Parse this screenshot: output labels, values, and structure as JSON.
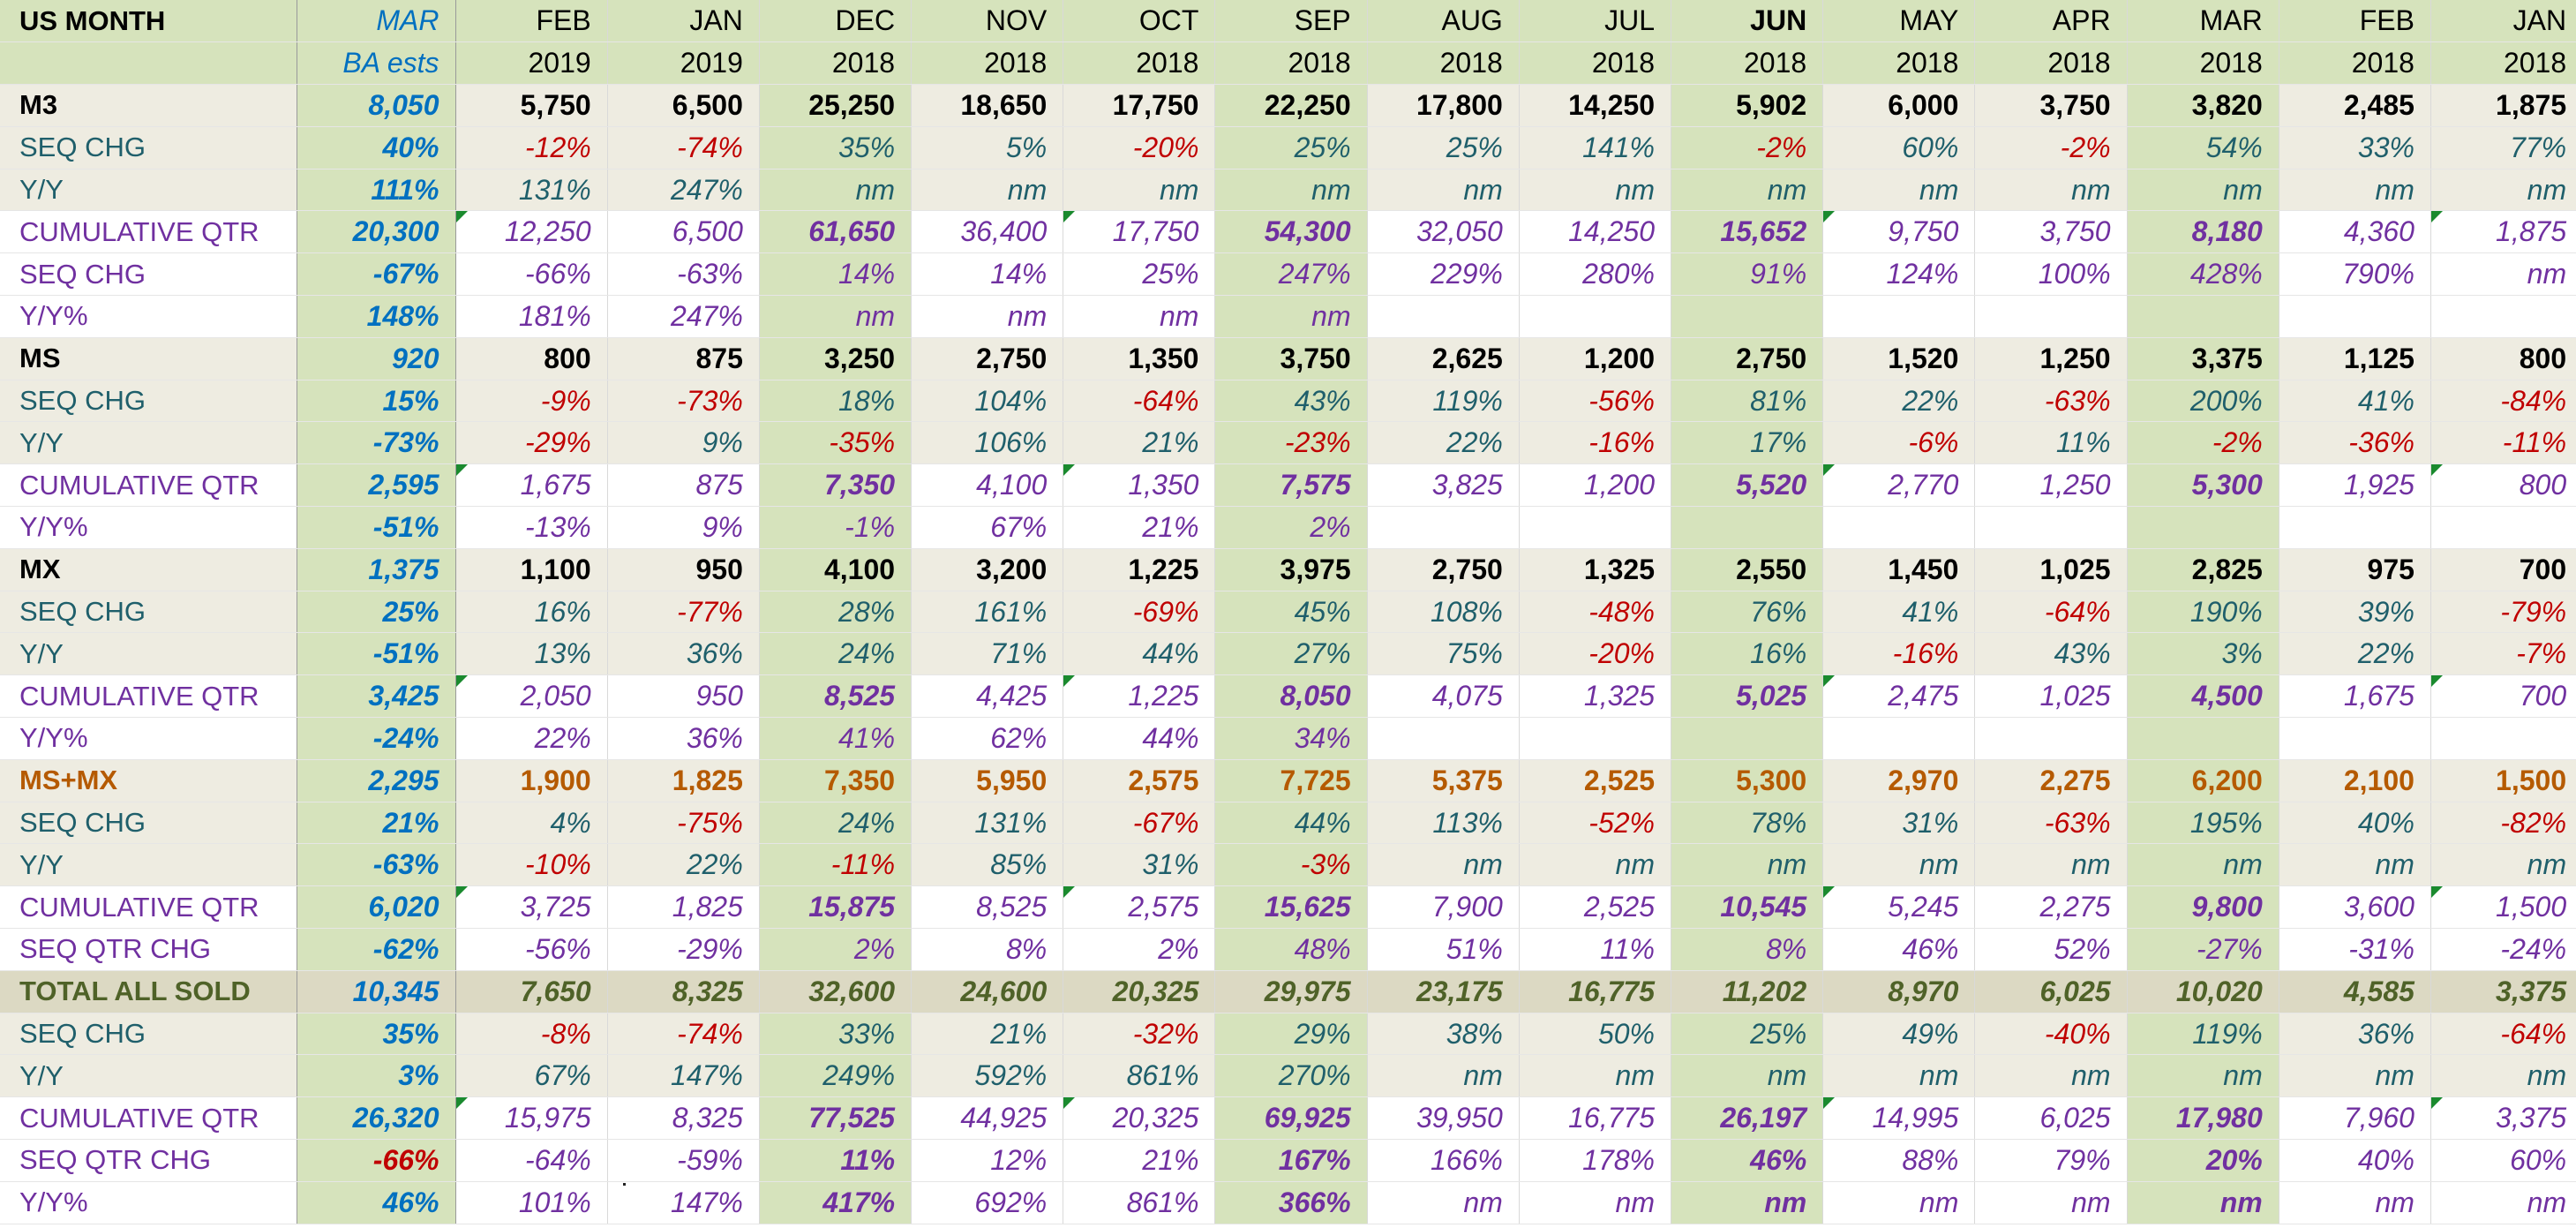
{
  "header": {
    "title": "US MONTH",
    "months": [
      "MAR",
      "FEB",
      "JAN",
      "DEC",
      "NOV",
      "OCT",
      "SEP",
      "AUG",
      "JUL",
      "JUN",
      "MAY",
      "APR",
      "MAR",
      "FEB",
      "JAN"
    ],
    "years": [
      "BA ests",
      "2019",
      "2019",
      "2018",
      "2018",
      "2018",
      "2018",
      "2018",
      "2018",
      "2018",
      "2018",
      "2018",
      "2018",
      "2018",
      "2018"
    ]
  },
  "colors": {
    "green_band": "#d6e3bc",
    "beige_band": "#eeece1",
    "tan_band": "#dcd9c3",
    "white": "#ffffff",
    "text_black": "#000000",
    "text_teal": "#1f5f6b",
    "text_red": "#c00000",
    "text_purple": "#7030a0",
    "text_blue": "#0070c0",
    "text_orange": "#b55a00",
    "text_olive": "#4f6228",
    "text_dark": "#222222",
    "comment_marker": "#1a8a2e"
  },
  "rows": [
    {
      "label": "M3",
      "kind": "head",
      "values": [
        "8,050",
        "5,750",
        "6,500",
        "25,250",
        "18,650",
        "17,750",
        "22,250",
        "17,800",
        "14,250",
        "5,902",
        "6,000",
        "3,750",
        "3,820",
        "2,485",
        "1,875"
      ]
    },
    {
      "label": "SEQ CHG",
      "kind": "pct",
      "values": [
        "40%",
        "-12%",
        "-74%",
        "35%",
        "5%",
        "-20%",
        "25%",
        "25%",
        "141%",
        "-2%",
        "60%",
        "-2%",
        "54%",
        "33%",
        "77%"
      ]
    },
    {
      "label": "Y/Y",
      "kind": "pct",
      "values": [
        "111%",
        "131%",
        "247%",
        "nm",
        "nm",
        "nm",
        "nm",
        "nm",
        "nm",
        "nm",
        "nm",
        "nm",
        "nm",
        "nm",
        "nm"
      ]
    },
    {
      "label": "CUMULATIVE QTR",
      "kind": "cum",
      "values": [
        "20,300",
        "12,250",
        "6,500",
        "61,650",
        "36,400",
        "17,750",
        "54,300",
        "32,050",
        "14,250",
        "15,652",
        "9,750",
        "3,750",
        "8,180",
        "4,360",
        "1,875"
      ]
    },
    {
      "label": "SEQ CHG",
      "kind": "cumpct",
      "values": [
        "-67%",
        "-66%",
        "-63%",
        "14%",
        "14%",
        "25%",
        "247%",
        "229%",
        "280%",
        "91%",
        "124%",
        "100%",
        "428%",
        "790%",
        "nm"
      ]
    },
    {
      "label": "Y/Y%",
      "kind": "cumpct",
      "values": [
        "148%",
        "181%",
        "247%",
        "nm",
        "nm",
        "nm",
        "nm",
        "",
        "",
        "",
        "",
        "",
        "",
        "",
        ""
      ]
    },
    {
      "label": "MS",
      "kind": "head",
      "values": [
        "920",
        "800",
        "875",
        "3,250",
        "2,750",
        "1,350",
        "3,750",
        "2,625",
        "1,200",
        "2,750",
        "1,520",
        "1,250",
        "3,375",
        "1,125",
        "800"
      ]
    },
    {
      "label": "SEQ CHG",
      "kind": "pct",
      "values": [
        "15%",
        "-9%",
        "-73%",
        "18%",
        "104%",
        "-64%",
        "43%",
        "119%",
        "-56%",
        "81%",
        "22%",
        "-63%",
        "200%",
        "41%",
        "-84%"
      ]
    },
    {
      "label": "Y/Y",
      "kind": "pct",
      "values": [
        "-73%",
        "-29%",
        "9%",
        "-35%",
        "106%",
        "21%",
        "-23%",
        "22%",
        "-16%",
        "17%",
        "-6%",
        "11%",
        "-2%",
        "-36%",
        "-11%"
      ]
    },
    {
      "label": "CUMULATIVE QTR",
      "kind": "cum",
      "values": [
        "2,595",
        "1,675",
        "875",
        "7,350",
        "4,100",
        "1,350",
        "7,575",
        "3,825",
        "1,200",
        "5,520",
        "2,770",
        "1,250",
        "5,300",
        "1,925",
        "800"
      ]
    },
    {
      "label": "Y/Y%",
      "kind": "cumpct",
      "values": [
        "-51%",
        "-13%",
        "9%",
        "-1%",
        "67%",
        "21%",
        "2%",
        "",
        "",
        "",
        "",
        "",
        "",
        "",
        ""
      ]
    },
    {
      "label": "MX",
      "kind": "head",
      "values": [
        "1,375",
        "1,100",
        "950",
        "4,100",
        "3,200",
        "1,225",
        "3,975",
        "2,750",
        "1,325",
        "2,550",
        "1,450",
        "1,025",
        "2,825",
        "975",
        "700"
      ]
    },
    {
      "label": "SEQ CHG",
      "kind": "pct",
      "values": [
        "25%",
        "16%",
        "-77%",
        "28%",
        "161%",
        "-69%",
        "45%",
        "108%",
        "-48%",
        "76%",
        "41%",
        "-64%",
        "190%",
        "39%",
        "-79%"
      ]
    },
    {
      "label": "Y/Y",
      "kind": "pct",
      "values": [
        "-51%",
        "13%",
        "36%",
        "24%",
        "71%",
        "44%",
        "27%",
        "75%",
        "-20%",
        "16%",
        "-16%",
        "43%",
        "3%",
        "22%",
        "-7%"
      ]
    },
    {
      "label": "CUMULATIVE QTR",
      "kind": "cum",
      "values": [
        "3,425",
        "2,050",
        "950",
        "8,525",
        "4,425",
        "1,225",
        "8,050",
        "4,075",
        "1,325",
        "5,025",
        "2,475",
        "1,025",
        "4,500",
        "1,675",
        "700"
      ]
    },
    {
      "label": "Y/Y%",
      "kind": "cumpct",
      "values": [
        "-24%",
        "22%",
        "36%",
        "41%",
        "62%",
        "44%",
        "34%",
        "",
        "",
        "",
        "",
        "",
        "",
        "",
        ""
      ]
    },
    {
      "label": "MS+MX",
      "kind": "mshead",
      "values": [
        "2,295",
        "1,900",
        "1,825",
        "7,350",
        "5,950",
        "2,575",
        "7,725",
        "5,375",
        "2,525",
        "5,300",
        "2,970",
        "2,275",
        "6,200",
        "2,100",
        "1,500"
      ]
    },
    {
      "label": "SEQ CHG",
      "kind": "pct",
      "values": [
        "21%",
        "4%",
        "-75%",
        "24%",
        "131%",
        "-67%",
        "44%",
        "113%",
        "-52%",
        "78%",
        "31%",
        "-63%",
        "195%",
        "40%",
        "-82%"
      ]
    },
    {
      "label": "Y/Y",
      "kind": "pct",
      "values": [
        "-63%",
        "-10%",
        "22%",
        "-11%",
        "85%",
        "31%",
        "-3%",
        "nm",
        "nm",
        "nm",
        "nm",
        "nm",
        "nm",
        "nm",
        "nm"
      ]
    },
    {
      "label": "CUMULATIVE QTR",
      "kind": "cum",
      "values": [
        "6,020",
        "3,725",
        "1,825",
        "15,875",
        "8,525",
        "2,575",
        "15,625",
        "7,900",
        "2,525",
        "10,545",
        "5,245",
        "2,275",
        "9,800",
        "3,600",
        "1,500"
      ]
    },
    {
      "label": "SEQ QTR CHG",
      "kind": "cumpct",
      "values": [
        "-62%",
        "-56%",
        "-29%",
        "2%",
        "8%",
        "2%",
        "48%",
        "51%",
        "11%",
        "8%",
        "46%",
        "52%",
        "-27%",
        "-31%",
        "-24%"
      ]
    },
    {
      "label": "TOTAL ALL SOLD",
      "kind": "total",
      "values": [
        "10,345",
        "7,650",
        "8,325",
        "32,600",
        "24,600",
        "20,325",
        "29,975",
        "23,175",
        "16,775",
        "11,202",
        "8,970",
        "6,025",
        "10,020",
        "4,585",
        "3,375"
      ]
    },
    {
      "label": "SEQ CHG",
      "kind": "pct",
      "values": [
        "35%",
        "-8%",
        "-74%",
        "33%",
        "21%",
        "-32%",
        "29%",
        "38%",
        "50%",
        "25%",
        "49%",
        "-40%",
        "119%",
        "36%",
        "-64%"
      ]
    },
    {
      "label": "Y/Y",
      "kind": "pct",
      "values": [
        "3%",
        "67%",
        "147%",
        "249%",
        "592%",
        "861%",
        "270%",
        "nm",
        "nm",
        "nm",
        "nm",
        "nm",
        "nm",
        "nm",
        "nm"
      ]
    },
    {
      "label": "CUMULATIVE QTR",
      "kind": "cum",
      "values": [
        "26,320",
        "15,975",
        "8,325",
        "77,525",
        "44,925",
        "20,325",
        "69,925",
        "39,950",
        "16,775",
        "26,197",
        "14,995",
        "6,025",
        "17,980",
        "7,960",
        "3,375"
      ]
    },
    {
      "label": "SEQ QTR CHG",
      "kind": "cumpct",
      "values": [
        "-66%",
        "-64%",
        "-59%",
        "11%",
        "12%",
        "21%",
        "167%",
        "166%",
        "178%",
        "46%",
        "88%",
        "79%",
        "20%",
        "40%",
        "60%"
      ]
    },
    {
      "label": "Y/Y%",
      "kind": "cumpct",
      "values": [
        "46%",
        "101%",
        "147%",
        "417%",
        "692%",
        "861%",
        "366%",
        "nm",
        "nm",
        "nm",
        "nm",
        "nm",
        "nm",
        "nm",
        "nm"
      ]
    }
  ]
}
